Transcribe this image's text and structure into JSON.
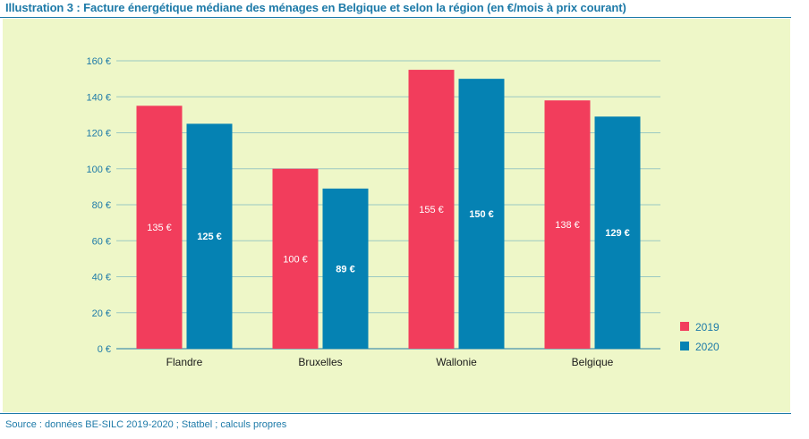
{
  "title": "Illustration 3 : Facture énergétique médiane des ménages en Belgique et selon la région (en €/mois à prix courant)",
  "source": "Source : données BE-SILC 2019-2020 ; Statbel ; calculs propres",
  "colors": {
    "s2019": "#f23d5c",
    "s2020": "#0582b3",
    "background": "#eef7c8",
    "grid": "#9bc9c2",
    "accent": "#1d7aa8"
  },
  "chart_data": {
    "type": "bar",
    "categories": [
      "Flandre",
      "Bruxelles",
      "Wallonie",
      "Belgique"
    ],
    "series": [
      {
        "name": "2019",
        "values": [
          135,
          100,
          155,
          138
        ],
        "labels": [
          "135 €",
          "100 €",
          "155 €",
          "138 €"
        ]
      },
      {
        "name": "2020",
        "values": [
          125,
          89,
          150,
          129
        ],
        "labels": [
          "125 €",
          "89 €",
          "150 €",
          "129 €"
        ]
      }
    ],
    "yticks": [
      "0 €",
      "20 €",
      "40 €",
      "60 €",
      "80 €",
      "100 €",
      "120 €",
      "140 €",
      "160 €"
    ],
    "ytick_values": [
      0,
      20,
      40,
      60,
      80,
      100,
      120,
      140,
      160
    ],
    "ylim": [
      0,
      160
    ],
    "grid": true,
    "legend": "bottom-right",
    "title": "",
    "xlabel": "",
    "ylabel": ""
  }
}
